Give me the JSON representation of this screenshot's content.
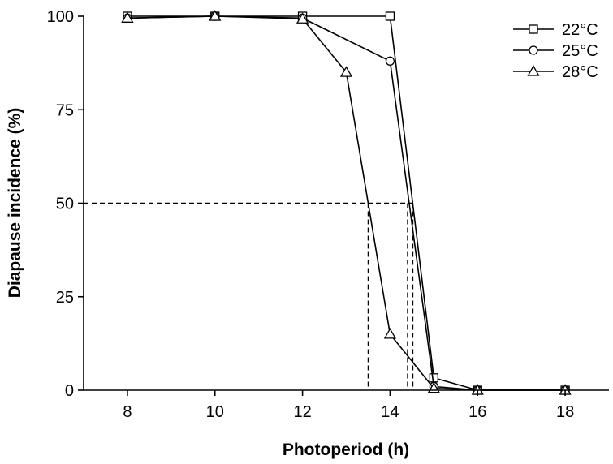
{
  "chart_data": {
    "type": "line",
    "title": "",
    "xlabel": "Photoperiod (h)",
    "ylabel": "Diapause incidence (%)",
    "xlim": [
      7,
      19
    ],
    "ylim": [
      0,
      100
    ],
    "x_ticks": [
      8,
      10,
      12,
      14,
      16,
      18
    ],
    "y_ticks": [
      0,
      25,
      50,
      75,
      100
    ],
    "grid": false,
    "legend_position": "top-right",
    "series": [
      {
        "name": "22°C",
        "marker": "square",
        "x": [
          8,
          10,
          12,
          14,
          15,
          16,
          18
        ],
        "y": [
          100,
          100,
          100,
          100,
          3.3,
          0,
          0
        ]
      },
      {
        "name": "25°C",
        "marker": "circle",
        "x": [
          8,
          10,
          12,
          14,
          15,
          16,
          18
        ],
        "y": [
          99.5,
          100,
          99.5,
          88,
          1,
          0,
          0
        ]
      },
      {
        "name": "28°C",
        "marker": "triangle",
        "x": [
          8,
          10,
          12,
          13,
          14,
          15,
          16,
          18
        ],
        "y": [
          99.5,
          100,
          99.3,
          85,
          15,
          0.5,
          0,
          0
        ]
      }
    ],
    "reference_lines": {
      "y": 50,
      "x": [
        13.5,
        14.4,
        14.52
      ]
    }
  }
}
